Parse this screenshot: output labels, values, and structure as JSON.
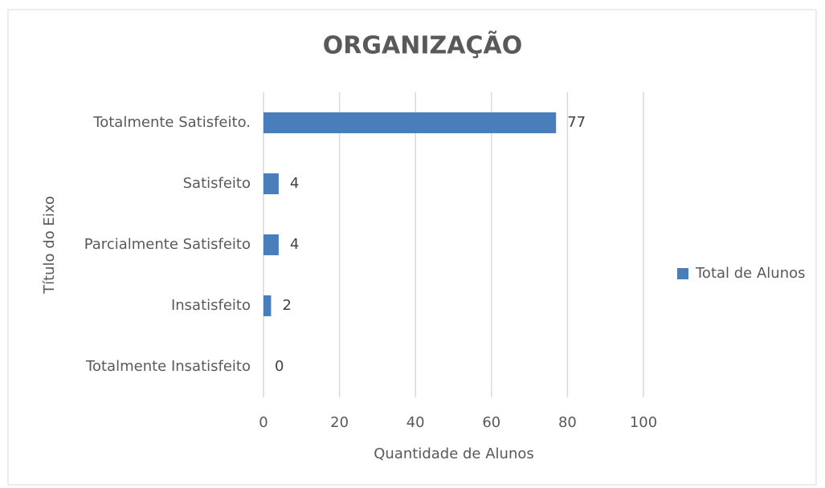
{
  "chart_data": {
    "type": "bar",
    "orientation": "horizontal",
    "title": "ORGANIZAÇÃO",
    "x_label": "Quantidade de Alunos",
    "y_label": "Título do Eixo",
    "categories": [
      "Totalmente Satisfeito.",
      "Satisfeito",
      "Parcialmente Satisfeito",
      "Insatisfeito",
      "Totalmente Insatisfeito"
    ],
    "series": [
      {
        "name": "Total de Alunos",
        "color": "#4a7ebb",
        "values": [
          77,
          4,
          4,
          2,
          0
        ]
      }
    ],
    "xlim": [
      0,
      100
    ],
    "xticks": [
      0,
      20,
      40,
      60,
      80,
      100
    ],
    "grid": true,
    "legend": "right",
    "data_labels": true
  }
}
